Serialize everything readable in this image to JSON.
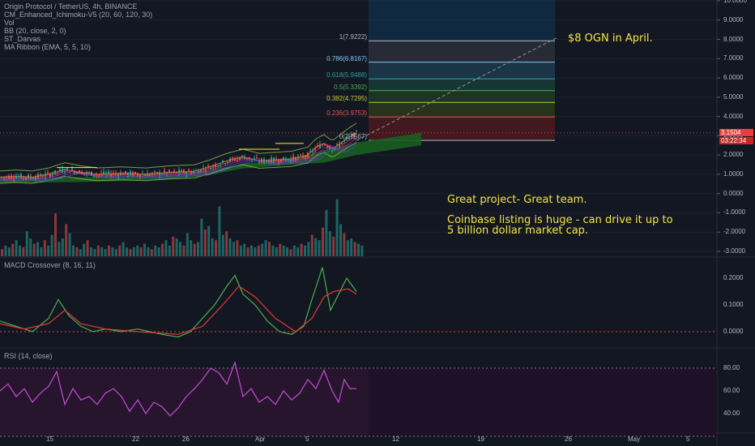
{
  "legend": {
    "symbol": "Origin Protocol / TetherUS, 4h, BINANCE",
    "indicators": [
      "CM_Enhanced_Ichimoku-V5 (20, 60, 120, 30)",
      "Vol",
      "BB (20, close, 2, 0)",
      "ST_Darvas",
      "MA Ribbon (EMA, 5, 5, 10)"
    ],
    "macd": "MACD Crossover (8, 16, 11)",
    "rsi": "RSI (14, close)"
  },
  "notes": {
    "target": "$8 OGN in April.",
    "line1": "Great project- Great team.",
    "line2": "Coinbase listing is huge - can drive it up to",
    "line3": "5 billion dollar market cap."
  },
  "price_tag": {
    "price": "3.1504",
    "countdown": "03:22:34"
  },
  "colors": {
    "background": "#131722",
    "bull": "#26a69a",
    "bear": "#ef5350",
    "text_note": "#f5e642",
    "macd": "#4caf50",
    "signal": "#e53935",
    "rsi": "#c34fd6"
  },
  "chart_data": [
    {
      "type": "candlestick",
      "title": "Origin Protocol / TetherUS, 4h, BINANCE",
      "ylim": [
        -3,
        10
      ],
      "y_ticks": [
        "10.0000",
        "9.0000",
        "8.0000",
        "7.0000",
        "6.0000",
        "5.0000",
        "4.0000",
        "3.0000",
        "2.0000",
        "1.0000",
        "0.0000",
        "-1.0000",
        "-2.0000",
        "-3.0000"
      ],
      "x_ticks": [
        "15",
        "22",
        "26",
        "Apr",
        "5",
        "12",
        "19",
        "26",
        "May",
        "5"
      ],
      "price_path": [
        [
          0,
          0.85
        ],
        [
          20,
          0.9
        ],
        [
          40,
          0.85
        ],
        [
          60,
          1.0
        ],
        [
          80,
          1.25
        ],
        [
          100,
          1.1
        ],
        [
          120,
          1.0
        ],
        [
          150,
          1.05
        ],
        [
          180,
          1.0
        ],
        [
          210,
          1.1
        ],
        [
          240,
          1.15
        ],
        [
          260,
          1.4
        ],
        [
          280,
          1.7
        ],
        [
          300,
          1.9
        ],
        [
          320,
          1.7
        ],
        [
          340,
          1.75
        ],
        [
          360,
          1.8
        ],
        [
          380,
          2.0
        ],
        [
          390,
          2.4
        ],
        [
          400,
          2.6
        ],
        [
          410,
          2.3
        ],
        [
          420,
          2.6
        ],
        [
          430,
          2.9
        ],
        [
          440,
          3.15
        ]
      ],
      "fibonacci": [
        {
          "label": "1(7.9222)",
          "value": 7.9222,
          "color": "#b2b5be"
        },
        {
          "label": "0.786(6.8167)",
          "value": 6.8167,
          "color": "#81c7f2"
        },
        {
          "label": "0.618(5.9488)",
          "value": 5.9488,
          "color": "#26a69a"
        },
        {
          "label": "0.5(5.3392)",
          "value": 5.3392,
          "color": "#4caf50"
        },
        {
          "label": "0.382(4.7295)",
          "value": 4.7295,
          "color": "#c0ca33"
        },
        {
          "label": "0.236(3.9753)",
          "value": 3.9753,
          "color": "#ef5350"
        },
        {
          "label": "0(2.7567)",
          "value": 2.7567,
          "color": "#b2b5be"
        }
      ],
      "projection": {
        "from_x": 440,
        "from_y": 2.75,
        "to_x": 688,
        "to_y": 8.1
      }
    },
    {
      "type": "bar",
      "title": "Vol",
      "series": [
        {
          "values": [
            0.4,
            0.6,
            0.5,
            0.7,
            0.9,
            0.6,
            0.5,
            1.4,
            1.0,
            0.7,
            0.8,
            0.5,
            0.9,
            0.6,
            1.2,
            2.4,
            0.8,
            1.0,
            1.8,
            1.3,
            0.6,
            0.5,
            0.4,
            0.7,
            0.9,
            0.5,
            0.4,
            0.6,
            0.5,
            0.4,
            0.6,
            0.5,
            0.4,
            0.6,
            0.8,
            0.5,
            0.4,
            0.5,
            0.6,
            0.5,
            0.7,
            0.5,
            0.4,
            0.6,
            0.5,
            0.7,
            0.9,
            0.6,
            1.1,
            1.0,
            0.8,
            0.6,
            1.3,
            0.9,
            0.7,
            0.8,
            2.1,
            1.5,
            1.7,
            1.0,
            0.9,
            2.8,
            1.2,
            1.4,
            1.0,
            0.8,
            0.9,
            0.6,
            0.7,
            0.5,
            0.6,
            0.5,
            0.6,
            0.7,
            0.9,
            0.8,
            0.6,
            0.5,
            0.7,
            0.6,
            0.5,
            0.4,
            0.6,
            0.5,
            0.7,
            0.6,
            0.8,
            1.2,
            1.0,
            0.9,
            1.6,
            2.6,
            1.4,
            1.1,
            3.2,
            1.8,
            1.3,
            0.9,
            1.0,
            0.8,
            0.7,
            0.6
          ]
        }
      ]
    },
    {
      "type": "line",
      "title": "MACD Crossover (8, 16, 11)",
      "ylim": [
        -0.05,
        0.22
      ],
      "y_ticks": [
        "0.2000",
        "0.1000",
        "0.0000"
      ],
      "series": [
        {
          "values": [
            [
              0,
              0.04
            ],
            [
              20,
              0.02
            ],
            [
              40,
              0.0
            ],
            [
              60,
              0.05
            ],
            [
              72,
              0.12
            ],
            [
              85,
              0.06
            ],
            [
              100,
              0.02
            ],
            [
              115,
              0.0
            ],
            [
              130,
              0.01
            ],
            [
              150,
              0.0
            ],
            [
              170,
              0.01
            ],
            [
              200,
              -0.01
            ],
            [
              220,
              -0.02
            ],
            [
              235,
              0.0
            ],
            [
              250,
              0.05
            ],
            [
              265,
              0.1
            ],
            [
              280,
              0.17
            ],
            [
              290,
              0.21
            ],
            [
              300,
              0.14
            ],
            [
              315,
              0.1
            ],
            [
              330,
              0.04
            ],
            [
              345,
              0.0
            ],
            [
              360,
              -0.01
            ],
            [
              375,
              0.02
            ],
            [
              385,
              0.12
            ],
            [
              398,
              0.24
            ],
            [
              408,
              0.08
            ],
            [
              418,
              0.14
            ],
            [
              428,
              0.2
            ],
            [
              440,
              0.15
            ]
          ]
        },
        {
          "values": [
            [
              0,
              0.03
            ],
            [
              30,
              0.01
            ],
            [
              60,
              0.03
            ],
            [
              80,
              0.08
            ],
            [
              100,
              0.03
            ],
            [
              130,
              0.01
            ],
            [
              170,
              0.0
            ],
            [
              220,
              -0.01
            ],
            [
              250,
              0.02
            ],
            [
              275,
              0.1
            ],
            [
              295,
              0.17
            ],
            [
              315,
              0.13
            ],
            [
              340,
              0.05
            ],
            [
              365,
              0.0
            ],
            [
              385,
              0.05
            ],
            [
              400,
              0.13
            ],
            [
              412,
              0.15
            ],
            [
              430,
              0.16
            ],
            [
              440,
              0.14
            ]
          ]
        }
      ]
    },
    {
      "type": "line",
      "title": "RSI (14, close)",
      "ylim": [
        30,
        90
      ],
      "y_ticks": [
        "80.00",
        "60.00",
        "40.00"
      ],
      "series": [
        {
          "values": [
            [
              0,
              60
            ],
            [
              10,
              66
            ],
            [
              20,
              55
            ],
            [
              30,
              62
            ],
            [
              40,
              50
            ],
            [
              50,
              58
            ],
            [
              60,
              64
            ],
            [
              70,
              77
            ],
            [
              80,
              48
            ],
            [
              90,
              62
            ],
            [
              100,
              52
            ],
            [
              110,
              55
            ],
            [
              120,
              48
            ],
            [
              130,
              58
            ],
            [
              140,
              62
            ],
            [
              150,
              55
            ],
            [
              160,
              42
            ],
            [
              170,
              52
            ],
            [
              180,
              40
            ],
            [
              190,
              50
            ],
            [
              200,
              46
            ],
            [
              210,
              38
            ],
            [
              220,
              45
            ],
            [
              230,
              55
            ],
            [
              240,
              62
            ],
            [
              250,
              70
            ],
            [
              260,
              80
            ],
            [
              270,
              76
            ],
            [
              280,
              66
            ],
            [
              290,
              85
            ],
            [
              300,
              55
            ],
            [
              310,
              62
            ],
            [
              320,
              50
            ],
            [
              330,
              55
            ],
            [
              340,
              48
            ],
            [
              350,
              60
            ],
            [
              360,
              52
            ],
            [
              370,
              58
            ],
            [
              380,
              70
            ],
            [
              390,
              62
            ],
            [
              400,
              78
            ],
            [
              410,
              60
            ],
            [
              418,
              50
            ],
            [
              425,
              70
            ],
            [
              432,
              62
            ],
            [
              440,
              62
            ]
          ]
        }
      ]
    }
  ]
}
